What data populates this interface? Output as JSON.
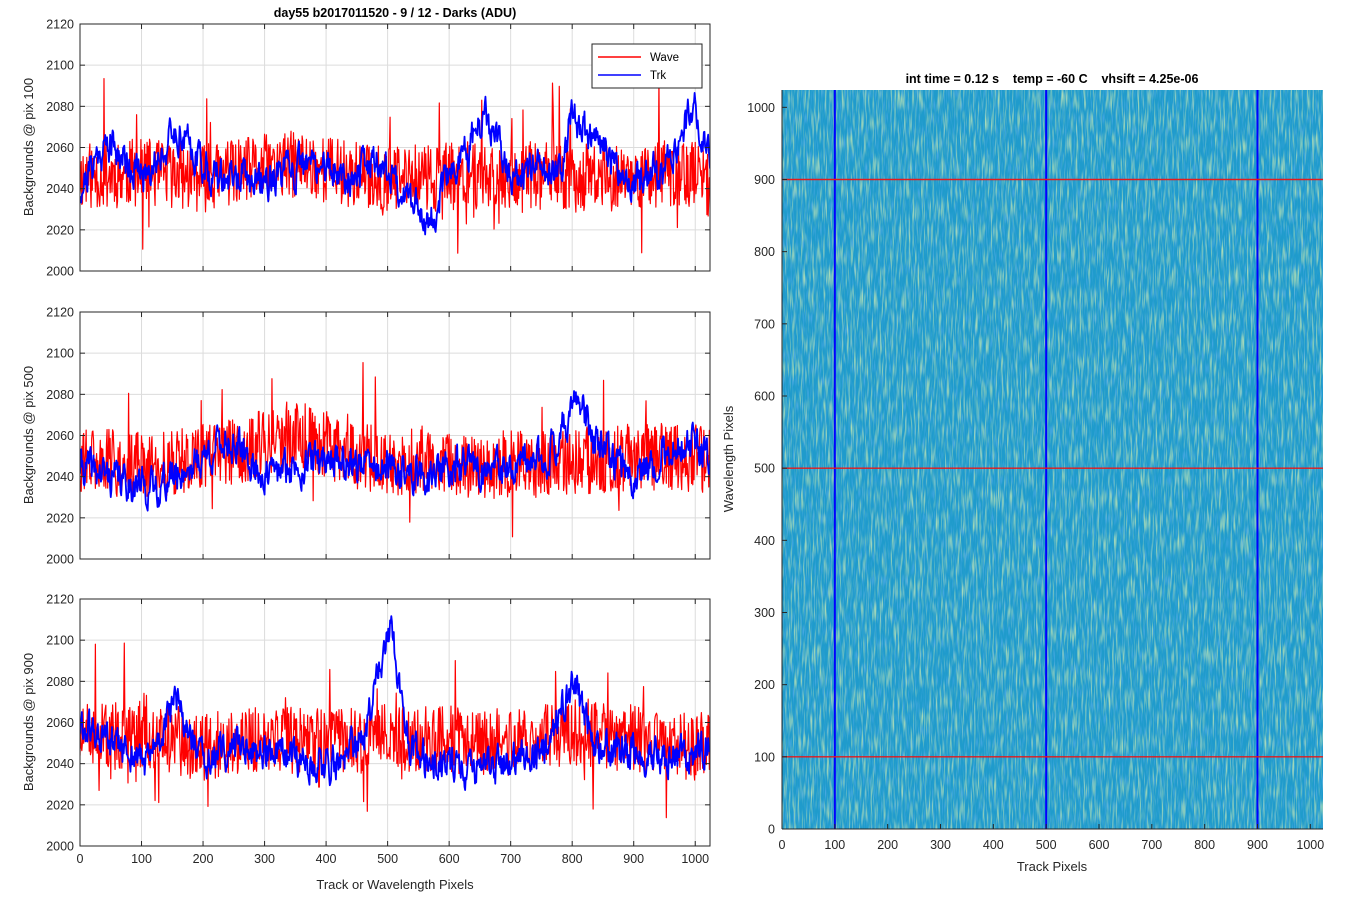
{
  "colors": {
    "wave": "#ff0000",
    "trk": "#0000ff",
    "grid": "#d9d9d9",
    "axis": "#262626"
  },
  "chart_data": [
    {
      "type": "line",
      "title": "day55 b2017011520 - 9 / 12 - Darks (ADU)",
      "xlabel": "",
      "ylabel": "Backgrounds @ pix 100",
      "xlim": [
        0,
        1024
      ],
      "ylim": [
        2000,
        2120
      ],
      "xticks": [
        0,
        100,
        200,
        300,
        400,
        500,
        600,
        700,
        800,
        900,
        1000
      ],
      "yticks": [
        2000,
        2020,
        2040,
        2060,
        2080,
        2100,
        2120
      ],
      "ytick_labels": [
        "2000",
        "2020",
        "2040",
        "2060",
        "2080",
        "2100",
        "2120"
      ],
      "grid": true,
      "legend": {
        "position": "top-right",
        "entries": [
          "Wave",
          "Trk"
        ]
      },
      "series": [
        {
          "name": "Wave",
          "color": "#ff0000",
          "mean": 2046,
          "noise": 11,
          "seed": 11,
          "x": [
            0,
            100,
            200,
            300,
            360,
            450,
            500,
            600,
            700,
            800,
            900,
            1000,
            1024
          ],
          "values": [
            2046,
            2048,
            2045,
            2050,
            2052,
            2047,
            2044,
            2046,
            2047,
            2045,
            2046,
            2048,
            2042
          ]
        },
        {
          "name": "Trk",
          "color": "#0000ff",
          "mean": 2048,
          "noise": 6,
          "seed": 21,
          "x": [
            0,
            30,
            50,
            100,
            160,
            220,
            300,
            380,
            440,
            480,
            570,
            600,
            660,
            700,
            780,
            800,
            900,
            950,
            1000,
            1024
          ],
          "values": [
            2040,
            2058,
            2062,
            2046,
            2068,
            2045,
            2044,
            2052,
            2046,
            2055,
            2024,
            2046,
            2074,
            2046,
            2050,
            2075,
            2042,
            2050,
            2080,
            2058
          ]
        }
      ]
    },
    {
      "type": "line",
      "title": "",
      "xlabel": "",
      "ylabel": "Backgrounds @ pix 500",
      "xlim": [
        0,
        1024
      ],
      "ylim": [
        2000,
        2120
      ],
      "xticks": [
        0,
        100,
        200,
        300,
        400,
        500,
        600,
        700,
        800,
        900,
        1000
      ],
      "yticks": [
        2000,
        2020,
        2040,
        2060,
        2080,
        2100,
        2120
      ],
      "ytick_labels": [
        "2000",
        "2020",
        "2040",
        "2060",
        "2080",
        "2100",
        "2120"
      ],
      "grid": true,
      "series": [
        {
          "name": "Wave",
          "color": "#ff0000",
          "mean": 2049,
          "noise": 11,
          "seed": 31,
          "x": [
            0,
            100,
            200,
            300,
            360,
            450,
            500,
            600,
            700,
            800,
            900,
            1000,
            1024
          ],
          "values": [
            2048,
            2046,
            2049,
            2056,
            2060,
            2050,
            2048,
            2045,
            2046,
            2047,
            2050,
            2049,
            2046
          ]
        },
        {
          "name": "Trk",
          "color": "#0000ff",
          "mean": 2046,
          "noise": 6,
          "seed": 41,
          "x": [
            0,
            50,
            120,
            180,
            240,
            300,
            400,
            450,
            550,
            620,
            700,
            760,
            810,
            840,
            900,
            950,
            1000,
            1024
          ],
          "values": [
            2045,
            2040,
            2034,
            2045,
            2058,
            2040,
            2050,
            2046,
            2040,
            2045,
            2042,
            2050,
            2078,
            2055,
            2040,
            2052,
            2056,
            2046
          ]
        }
      ]
    },
    {
      "type": "line",
      "title": "",
      "xlabel": "Track or Wavelength Pixels",
      "ylabel": "Backgrounds @ pix 900",
      "xlim": [
        0,
        1024
      ],
      "ylim": [
        2000,
        2120
      ],
      "xticks": [
        0,
        100,
        200,
        300,
        400,
        500,
        600,
        700,
        800,
        900,
        1000
      ],
      "xtick_labels": [
        "0",
        "100",
        "200",
        "300",
        "400",
        "500",
        "600",
        "700",
        "800",
        "900",
        "1000"
      ],
      "yticks": [
        2000,
        2020,
        2040,
        2060,
        2080,
        2100,
        2120
      ],
      "ytick_labels": [
        "2000",
        "2020",
        "2040",
        "2060",
        "2080",
        "2100",
        "2120"
      ],
      "grid": true,
      "series": [
        {
          "name": "Wave",
          "color": "#ff0000",
          "mean": 2052,
          "noise": 11,
          "seed": 51,
          "x": [
            0,
            100,
            200,
            300,
            400,
            500,
            600,
            700,
            800,
            900,
            1000,
            1024
          ],
          "values": [
            2052,
            2054,
            2048,
            2052,
            2050,
            2053,
            2052,
            2050,
            2056,
            2052,
            2048,
            2050
          ]
        },
        {
          "name": "Trk",
          "color": "#0000ff",
          "mean": 2046,
          "noise": 6,
          "seed": 61,
          "x": [
            0,
            60,
            110,
            155,
            200,
            260,
            330,
            420,
            460,
            490,
            505,
            540,
            600,
            640,
            700,
            760,
            800,
            840,
            900,
            1000,
            1024
          ],
          "values": [
            2058,
            2048,
            2040,
            2070,
            2040,
            2050,
            2042,
            2040,
            2052,
            2090,
            2104,
            2045,
            2040,
            2038,
            2040,
            2048,
            2080,
            2048,
            2045,
            2044,
            2048
          ]
        }
      ]
    },
    {
      "type": "heatmap",
      "title": "int time = 0.12 s    temp = -60 C    vhsift = 4.25e-06",
      "xlabel": "Track Pixels",
      "ylabel": "Wavelength Pixels",
      "xlim": [
        0,
        1024
      ],
      "ylim": [
        0,
        1024
      ],
      "xticks": [
        0,
        100,
        200,
        300,
        400,
        500,
        600,
        700,
        800,
        900,
        1000
      ],
      "xtick_labels": [
        "0",
        "100",
        "200",
        "300",
        "400",
        "500",
        "600",
        "700",
        "800",
        "900",
        "1000"
      ],
      "yticks": [
        0,
        100,
        200,
        300,
        400,
        500,
        600,
        700,
        800,
        900,
        1000
      ],
      "ytick_labels": [
        "0",
        "100",
        "200",
        "300",
        "400",
        "500",
        "600",
        "700",
        "800",
        "900",
        "1000"
      ],
      "grid": false,
      "colormap": [
        "#1f6fd6",
        "#1a9bc9",
        "#4fbf9a",
        "#9ccb6a"
      ],
      "base_color": "#1f9bcc",
      "vertical_markers": {
        "color": "#0000ff",
        "values": [
          100,
          500,
          900
        ]
      },
      "horizontal_markers": {
        "color": "#e31a1c",
        "values": [
          100,
          500,
          900
        ]
      }
    }
  ]
}
